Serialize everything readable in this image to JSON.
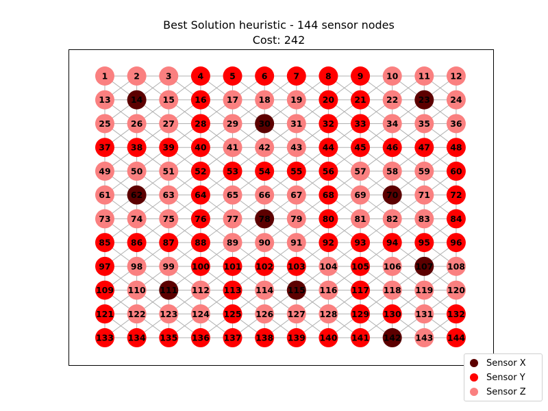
{
  "title_line1": "Best Solution heuristic - 144 sensor nodes",
  "title_line2": "Cost: 242",
  "colors": {
    "X": "#5c0000",
    "Y": "#ff0000",
    "Z": "#fa8080",
    "edge": "#b0b0b0"
  },
  "legend": [
    {
      "key": "X",
      "label": "Sensor X"
    },
    {
      "key": "Y",
      "label": "Sensor Y"
    },
    {
      "key": "Z",
      "label": "Sensor Z"
    }
  ],
  "graph": {
    "rows": 12,
    "cols": 12,
    "node_types": [
      "ZZZYYYYYYZZZ",
      "ZXZYZZZYYZXZ",
      "ZZZYZXZYYZZZ",
      "YYYYZZZYYYYY",
      "ZZZYYYYYZZZY",
      "ZXZYZZZYZXZY",
      "ZZZYZXZYZZZY",
      "YYYYZZZYYYYY",
      "YZZYYYYZYZXZ",
      "YZXZYZXZYZZZ",
      "YZZZYZZZYYZY",
      "YYYYYYYYYXZY"
    ]
  }
}
